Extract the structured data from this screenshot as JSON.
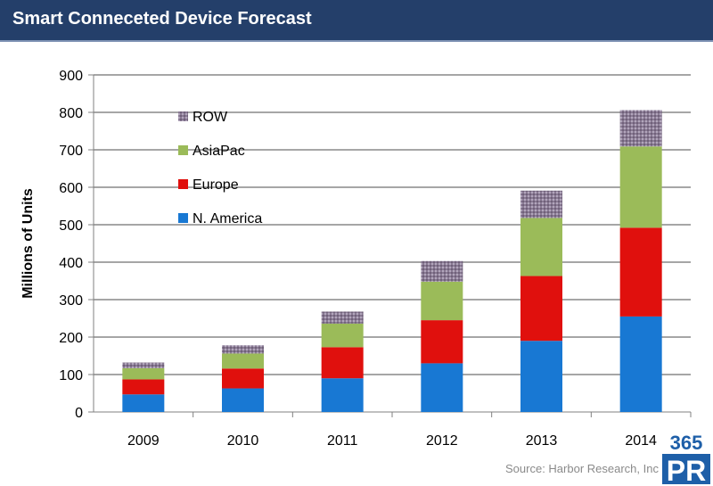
{
  "header": {
    "title": "Smart Conneceted Device Forecast"
  },
  "source": "Source: Harbor Research, Inc.",
  "logo": {
    "number": "365",
    "letters": "PR"
  },
  "colors": {
    "ROW": "#8a7a94",
    "AsiaPac": "#9bbb59",
    "Europe": "#e0100d",
    "N. America": "#1878d3"
  },
  "chart_data": {
    "type": "bar",
    "stacked": true,
    "title": "Smart Conneceted Device Forecast",
    "xlabel": "",
    "ylabel": "Millions of Units",
    "ylim": [
      0,
      900
    ],
    "yticks": [
      0,
      100,
      200,
      300,
      400,
      500,
      600,
      700,
      800,
      900
    ],
    "categories": [
      "2009",
      "2010",
      "2011",
      "2012",
      "2013",
      "2014"
    ],
    "series": [
      {
        "name": "N. America",
        "values": [
          47,
          63,
          90,
          130,
          190,
          255
        ]
      },
      {
        "name": "Europe",
        "values": [
          40,
          53,
          83,
          115,
          173,
          237
        ]
      },
      {
        "name": "AsiaPac",
        "values": [
          30,
          40,
          63,
          103,
          155,
          217
        ]
      },
      {
        "name": "ROW",
        "values": [
          15,
          22,
          32,
          55,
          73,
          97
        ]
      }
    ],
    "legend": {
      "position": "top-left",
      "order": [
        "ROW",
        "AsiaPac",
        "Europe",
        "N. America"
      ]
    },
    "grid": true
  }
}
